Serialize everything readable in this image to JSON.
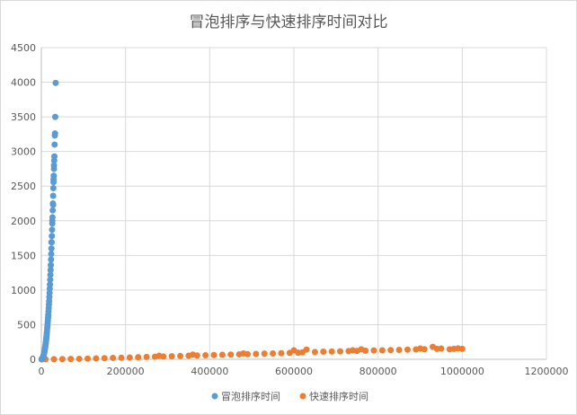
{
  "chart_data": {
    "type": "scatter",
    "title": "冒泡排序与快速排序时间对比",
    "xlabel": "",
    "ylabel": "",
    "xlim": [
      0,
      1200000
    ],
    "ylim": [
      0,
      4500
    ],
    "x_ticks": [
      "0",
      "200000",
      "400000",
      "600000",
      "800000",
      "1000000",
      "1200000"
    ],
    "y_ticks": [
      "0",
      "500",
      "1000",
      "1500",
      "2000",
      "2500",
      "3000",
      "3500",
      "4000",
      "4500"
    ],
    "grid": true,
    "legend_position": "bottom",
    "series": [
      {
        "name": "冒泡排序时间",
        "color": "#5b9bd5",
        "points": [
          [
            500,
            0
          ],
          [
            1000,
            2
          ],
          [
            1500,
            5
          ],
          [
            2000,
            8
          ],
          [
            2500,
            12
          ],
          [
            3000,
            18
          ],
          [
            3500,
            25
          ],
          [
            4000,
            32
          ],
          [
            4500,
            40
          ],
          [
            5000,
            50
          ],
          [
            5500,
            60
          ],
          [
            6000,
            72
          ],
          [
            6500,
            85
          ],
          [
            7000,
            100
          ],
          [
            7500,
            115
          ],
          [
            8000,
            130
          ],
          [
            8500,
            150
          ],
          [
            9000,
            170
          ],
          [
            9500,
            190
          ],
          [
            10000,
            210
          ],
          [
            10500,
            235
          ],
          [
            11000,
            260
          ],
          [
            11500,
            290
          ],
          [
            12000,
            320
          ],
          [
            12500,
            350
          ],
          [
            13000,
            380
          ],
          [
            13500,
            410
          ],
          [
            14000,
            450
          ],
          [
            14500,
            480
          ],
          [
            15000,
            520
          ],
          [
            15500,
            560
          ],
          [
            16000,
            600
          ],
          [
            16500,
            640
          ],
          [
            17000,
            690
          ],
          [
            17500,
            740
          ],
          [
            18000,
            790
          ],
          [
            18500,
            840
          ],
          [
            19000,
            900
          ],
          [
            19500,
            960
          ],
          [
            20000,
            1020
          ],
          [
            20500,
            1080
          ],
          [
            21000,
            1150
          ],
          [
            21500,
            1220
          ],
          [
            22000,
            1290
          ],
          [
            22500,
            1360
          ],
          [
            23000,
            1440
          ],
          [
            23500,
            1520
          ],
          [
            24000,
            1600
          ],
          [
            24500,
            1690
          ],
          [
            25000,
            1780
          ],
          [
            25500,
            1870
          ],
          [
            26000,
            1960
          ],
          [
            26500,
            2050
          ],
          [
            27000,
            2150
          ],
          [
            27500,
            2250
          ],
          [
            28000,
            2360
          ],
          [
            28500,
            2470
          ],
          [
            29000,
            2560
          ],
          [
            29500,
            2650
          ],
          [
            30000,
            2750
          ],
          [
            30500,
            2870
          ],
          [
            31000,
            2930
          ],
          [
            31500,
            3100
          ],
          [
            32000,
            3230
          ],
          [
            32500,
            3260
          ],
          [
            33000,
            3500
          ],
          [
            34000,
            3990
          ],
          [
            24000,
            1690
          ],
          [
            26000,
            2000
          ],
          [
            28000,
            2230
          ],
          [
            30000,
            2800
          ],
          [
            29000,
            2600
          ]
        ]
      },
      {
        "name": "快速排序时间",
        "color": "#ed7d31",
        "points": [
          [
            1000,
            0
          ],
          [
            10000,
            1
          ],
          [
            30000,
            2
          ],
          [
            50000,
            3
          ],
          [
            70000,
            5
          ],
          [
            90000,
            7
          ],
          [
            110000,
            10
          ],
          [
            130000,
            13
          ],
          [
            150000,
            16
          ],
          [
            170000,
            20
          ],
          [
            190000,
            22
          ],
          [
            210000,
            26
          ],
          [
            230000,
            30
          ],
          [
            250000,
            34
          ],
          [
            270000,
            38
          ],
          [
            280000,
            52
          ],
          [
            290000,
            40
          ],
          [
            310000,
            44
          ],
          [
            330000,
            48
          ],
          [
            350000,
            52
          ],
          [
            360000,
            68
          ],
          [
            370000,
            55
          ],
          [
            390000,
            58
          ],
          [
            410000,
            62
          ],
          [
            430000,
            65
          ],
          [
            450000,
            68
          ],
          [
            470000,
            72
          ],
          [
            480000,
            84
          ],
          [
            490000,
            75
          ],
          [
            510000,
            78
          ],
          [
            530000,
            82
          ],
          [
            550000,
            85
          ],
          [
            570000,
            88
          ],
          [
            590000,
            92
          ],
          [
            600000,
            130
          ],
          [
            610000,
            95
          ],
          [
            620000,
            100
          ],
          [
            630000,
            140
          ],
          [
            650000,
            105
          ],
          [
            670000,
            110
          ],
          [
            690000,
            112
          ],
          [
            710000,
            115
          ],
          [
            730000,
            118
          ],
          [
            740000,
            130
          ],
          [
            750000,
            122
          ],
          [
            760000,
            145
          ],
          [
            770000,
            125
          ],
          [
            790000,
            128
          ],
          [
            810000,
            130
          ],
          [
            830000,
            133
          ],
          [
            850000,
            136
          ],
          [
            870000,
            140
          ],
          [
            890000,
            143
          ],
          [
            900000,
            155
          ],
          [
            910000,
            146
          ],
          [
            930000,
            180
          ],
          [
            940000,
            150
          ],
          [
            950000,
            155
          ],
          [
            970000,
            145
          ],
          [
            980000,
            150
          ],
          [
            990000,
            158
          ],
          [
            1000000,
            150
          ]
        ]
      }
    ]
  }
}
